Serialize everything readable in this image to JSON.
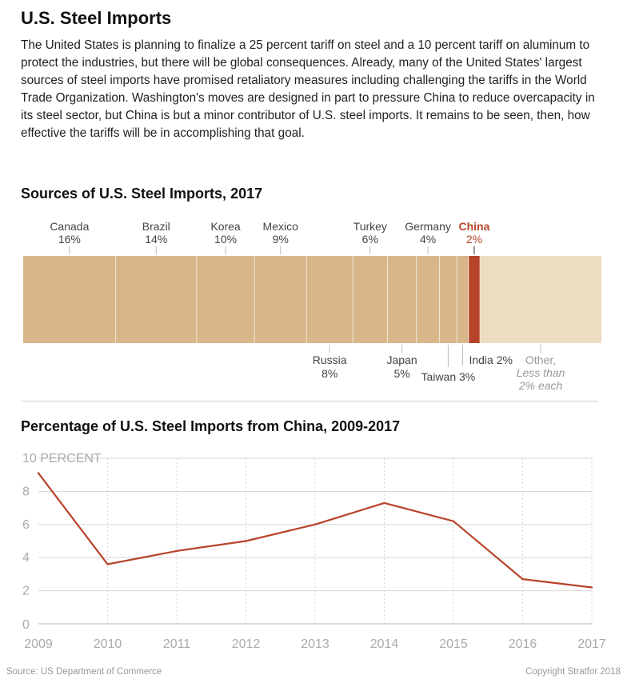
{
  "title": "U.S. Steel Imports",
  "intro": "The United States is planning to finalize a 25 percent tariff on steel and a 10 percent tariff on aluminum to protect the industries, but there will be global consequences. Already, many of the United States' largest sources of steel imports have promised retaliatory measures including challenging the tariffs in the World Trade Organization. Washington's moves are designed in part to pressure China to reduce overcapacity in its steel sector, but China is but a minor contributor of U.S. steel imports. It remains to be seen, then, how effective the tariffs will be in accomplishing that goal.",
  "footer": {
    "source": "Source: US Department of Commerce",
    "copyright": "Copyright Stratfor 2018"
  },
  "colors": {
    "tan": "#d9b68a",
    "light_tan": "#ecdcc2",
    "highlight": "#b7442a",
    "divider": "#f2e6d4",
    "label": "#444444",
    "gray_label": "#999999",
    "line": "#b7442a",
    "grid": "#d7d7d7"
  },
  "chart_data": [
    {
      "type": "bar",
      "subtype": "stacked-100-percent",
      "title": "Sources of U.S. Steel Imports, 2017",
      "segments": [
        {
          "name": "Canada",
          "value_label": "16%",
          "label_position": "top"
        },
        {
          "name": "Brazil",
          "value_label": "14%",
          "label_position": "top"
        },
        {
          "name": "Korea",
          "value_label": "10%",
          "label_position": "top"
        },
        {
          "name": "Mexico",
          "value_label": "9%",
          "label_position": "top"
        },
        {
          "name": "Russia",
          "value_label": "8%",
          "label_position": "bottom"
        },
        {
          "name": "Turkey",
          "value_label": "6%",
          "label_position": "top"
        },
        {
          "name": "Japan",
          "value_label": "5%",
          "label_position": "bottom"
        },
        {
          "name": "Germany",
          "value_label": "4%",
          "label_position": "top"
        },
        {
          "name": "Taiwan",
          "value_label": "3%",
          "label_position": "bottom"
        },
        {
          "name": "India",
          "value_label": "2%",
          "label_position": "bottom"
        },
        {
          "name": "China",
          "value_label": "2%",
          "label_position": "top",
          "highlight": true
        },
        {
          "name": "Other,",
          "note": "Less than 2% each",
          "label_position": "bottom",
          "muted": true
        }
      ],
      "values": [
        16,
        14,
        10,
        9,
        8,
        6,
        5,
        4,
        3,
        2,
        2,
        21
      ]
    },
    {
      "type": "line",
      "title": "Percentage of U.S. Steel Imports from China, 2009-2017",
      "x": [
        2009,
        2010,
        2011,
        2012,
        2013,
        2014,
        2015,
        2016,
        2017
      ],
      "y": [
        9.1,
        3.6,
        4.4,
        5.0,
        6.0,
        7.3,
        6.2,
        2.7,
        2.2
      ],
      "ylim": [
        0,
        10
      ],
      "yticks": [
        0,
        2,
        4,
        6,
        8,
        10
      ],
      "ytick_labels": [
        "0",
        "2",
        "4",
        "6",
        "8",
        "10 PERCENT"
      ],
      "grid": true
    }
  ]
}
